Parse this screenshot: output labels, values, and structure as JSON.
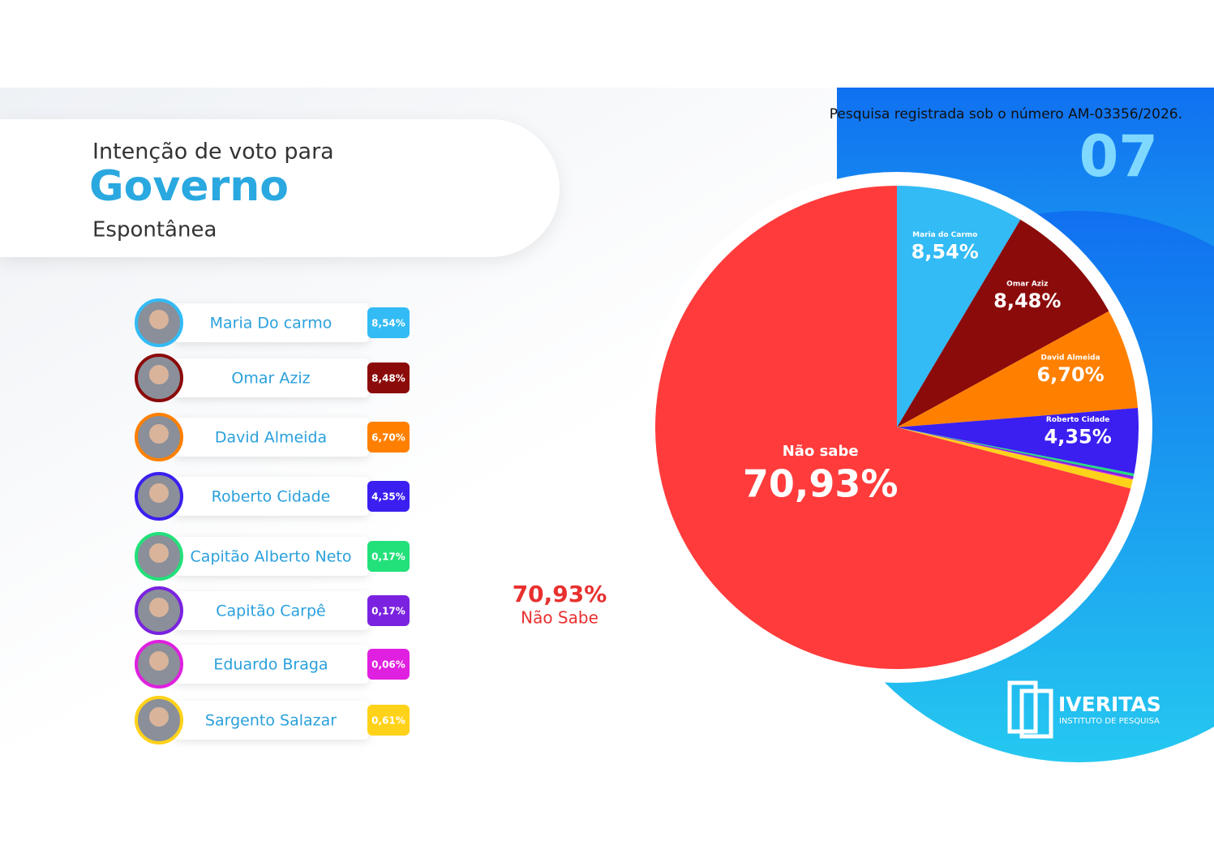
{
  "header": {
    "line1": "Intenção de voto para",
    "line2": "Governo",
    "line3": "Espontânea"
  },
  "registration": "Pesquisa registrada sob o número AM-03356/2026.",
  "page_number": "07",
  "logo": {
    "name": "IVERITAS",
    "subtitle": "INSTITUTO DE PESQUISA"
  },
  "annotation": "Não Sabe",
  "chart_data": {
    "type": "pie",
    "categories": [
      "Maria Do carmo",
      "Omar Aziz",
      "David Almeida",
      "Roberto Cidade",
      "Capitão Alberto Neto",
      "Capitão Carpê",
      "Eduardo Braga",
      "Sargento Salazar",
      "Não sabe"
    ],
    "slice_labels": [
      "Maria do Carmo",
      "Omar Aziz",
      "David Almeida",
      "Roberto Cidade",
      null,
      null,
      null,
      null,
      null
    ],
    "values": [
      8.54,
      8.48,
      6.7,
      4.35,
      0.17,
      0.17,
      0.06,
      0.61,
      70.93
    ],
    "value_labels": [
      "8,54%",
      "8,48%",
      "6,70%",
      "4,35%",
      "0,17%",
      "0,17%",
      "0,06%",
      "0,61%",
      "70,93%"
    ],
    "colors": [
      "#33bbf5",
      "#8b0a0a",
      "#ff8000",
      "#3a1ff0",
      "#22e07a",
      "#7a22e0",
      "#e020e0",
      "#ffd21a",
      "#ff3b3b"
    ]
  }
}
